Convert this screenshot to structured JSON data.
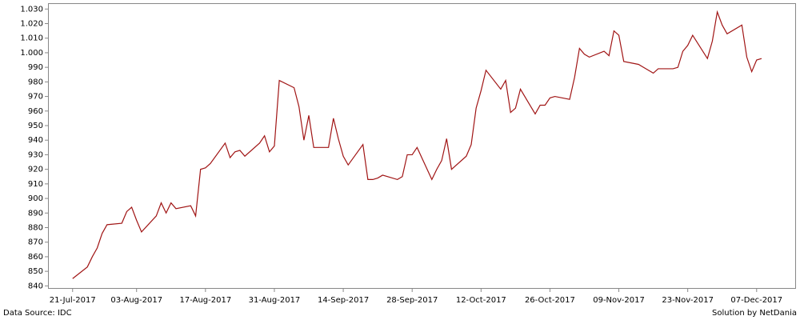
{
  "chart_data": {
    "type": "line",
    "source": "Data Source: IDC",
    "credit": "Solution by NetDania",
    "color": "#a01414",
    "grid": false,
    "xlim": [
      "2017-07-16",
      "2017-12-15"
    ],
    "xticks": [
      {
        "value": "2017-07-21",
        "label": "21-Jul-2017"
      },
      {
        "value": "2017-08-03",
        "label": "03-Aug-2017"
      },
      {
        "value": "2017-08-17",
        "label": "17-Aug-2017"
      },
      {
        "value": "2017-08-31",
        "label": "31-Aug-2017"
      },
      {
        "value": "2017-09-14",
        "label": "14-Sep-2017"
      },
      {
        "value": "2017-09-28",
        "label": "28-Sep-2017"
      },
      {
        "value": "2017-10-12",
        "label": "12-Oct-2017"
      },
      {
        "value": "2017-10-26",
        "label": "26-Oct-2017"
      },
      {
        "value": "2017-11-09",
        "label": "09-Nov-2017"
      },
      {
        "value": "2017-11-23",
        "label": "23-Nov-2017"
      },
      {
        "value": "2017-12-07",
        "label": "07-Dec-2017"
      }
    ],
    "ylim": [
      838,
      1034
    ],
    "yticks": [
      840,
      850,
      860,
      870,
      880,
      890,
      900,
      910,
      920,
      930,
      940,
      950,
      960,
      970,
      980,
      990,
      {
        "value": 1000,
        "label": "1.000"
      },
      {
        "value": 1010,
        "label": "1.010"
      },
      {
        "value": 1020,
        "label": "1.020"
      },
      {
        "value": 1030,
        "label": "1.030"
      }
    ],
    "x": [
      "2017-07-21",
      "2017-07-24",
      "2017-07-25",
      "2017-07-26",
      "2017-07-27",
      "2017-07-28",
      "2017-07-31",
      "2017-08-01",
      "2017-08-02",
      "2017-08-03",
      "2017-08-04",
      "2017-08-07",
      "2017-08-08",
      "2017-08-09",
      "2017-08-10",
      "2017-08-11",
      "2017-08-14",
      "2017-08-15",
      "2017-08-16",
      "2017-08-17",
      "2017-08-18",
      "2017-08-21",
      "2017-08-22",
      "2017-08-23",
      "2017-08-24",
      "2017-08-25",
      "2017-08-28",
      "2017-08-29",
      "2017-08-30",
      "2017-08-31",
      "2017-09-01",
      "2017-09-04",
      "2017-09-05",
      "2017-09-06",
      "2017-09-07",
      "2017-09-08",
      "2017-09-11",
      "2017-09-12",
      "2017-09-13",
      "2017-09-14",
      "2017-09-15",
      "2017-09-18",
      "2017-09-19",
      "2017-09-20",
      "2017-09-21",
      "2017-09-22",
      "2017-09-25",
      "2017-09-26",
      "2017-09-27",
      "2017-09-28",
      "2017-09-29",
      "2017-10-02",
      "2017-10-03",
      "2017-10-04",
      "2017-10-05",
      "2017-10-06",
      "2017-10-09",
      "2017-10-10",
      "2017-10-11",
      "2017-10-12",
      "2017-10-13",
      "2017-10-16",
      "2017-10-17",
      "2017-10-18",
      "2017-10-19",
      "2017-10-20",
      "2017-10-23",
      "2017-10-24",
      "2017-10-25",
      "2017-10-26",
      "2017-10-27",
      "2017-10-30",
      "2017-10-31",
      "2017-11-01",
      "2017-11-02",
      "2017-11-03",
      "2017-11-06",
      "2017-11-07",
      "2017-11-08",
      "2017-11-09",
      "2017-11-10",
      "2017-11-13",
      "2017-11-14",
      "2017-11-15",
      "2017-11-16",
      "2017-11-17",
      "2017-11-20",
      "2017-11-21",
      "2017-11-22",
      "2017-11-23",
      "2017-11-24",
      "2017-11-27",
      "2017-11-28",
      "2017-11-29",
      "2017-11-30",
      "2017-12-01",
      "2017-12-04",
      "2017-12-05",
      "2017-12-06",
      "2017-12-07",
      "2017-12-08"
    ],
    "values": [
      845,
      853,
      860,
      866,
      876,
      882,
      883,
      891,
      894,
      885,
      877,
      888,
      897,
      890,
      897,
      893,
      895,
      888,
      920,
      921,
      924,
      938,
      928,
      932,
      933,
      929,
      938,
      943,
      932,
      936,
      981,
      976,
      963,
      940,
      957,
      935,
      935,
      955,
      941,
      929,
      923,
      937,
      913,
      913,
      914,
      916,
      913,
      915,
      930,
      930,
      935,
      913,
      920,
      926,
      941,
      920,
      929,
      937,
      962,
      974,
      988,
      975,
      981,
      959,
      962,
      975,
      958,
      964,
      964,
      969,
      970,
      968,
      983,
      1003,
      999,
      997,
      1001,
      998,
      1015,
      1012,
      994,
      992,
      990,
      988,
      986,
      989,
      989,
      990,
      1001,
      1005,
      1012,
      996,
      1008,
      1028,
      1019,
      1013,
      1019,
      997,
      987,
      995,
      996
    ]
  }
}
